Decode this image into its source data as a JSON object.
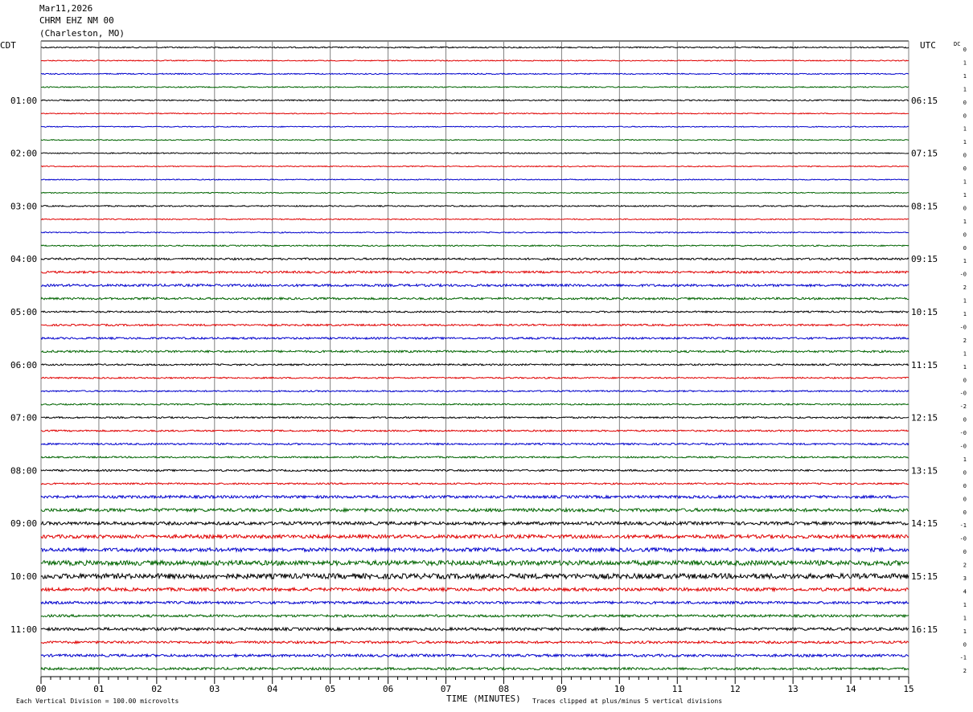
{
  "header": {
    "date": "Mar11,2026",
    "station": "CHRM EHZ NM 00",
    "location": "(Charleston, MO)"
  },
  "left_zone": "CDT",
  "right_zone": "UTC",
  "dc_label": "DC",
  "footer": {
    "x_axis_title": "TIME (MINUTES)",
    "scale_note": "Each Vertical Division =  100.00 microvolts",
    "clip_note": "Traces clipped at plus/minus 5 vertical divisions"
  },
  "colors": {
    "cycle": [
      "#000000",
      "#e00000",
      "#0000cc",
      "#006400"
    ],
    "grid": "#808080"
  },
  "chart_data": {
    "type": "line",
    "title": "CHRM EHZ NM 00 (Charleston, MO)",
    "xlabel": "TIME (MINUTES)",
    "x_ticks": [
      "00",
      "01",
      "02",
      "03",
      "04",
      "05",
      "06",
      "07",
      "08",
      "09",
      "10",
      "11",
      "12",
      "13",
      "14",
      "15"
    ],
    "xlim": [
      0,
      15
    ],
    "left_hour_labels": [
      "01:00",
      "02:00",
      "03:00",
      "04:00",
      "05:00",
      "06:00",
      "07:00",
      "08:00",
      "09:00",
      "10:00",
      "11:00"
    ],
    "right_hour_labels": [
      "06:15",
      "07:15",
      "08:15",
      "09:15",
      "10:15",
      "11:15",
      "12:15",
      "13:15",
      "14:15",
      "15:15",
      "16:15"
    ],
    "dc_offsets": [
      "0",
      "1",
      "1",
      "1",
      "0",
      "0",
      "1",
      "1",
      "0",
      "0",
      "1",
      "1",
      "0",
      "1",
      "0",
      "0",
      "1",
      "-0",
      "2",
      "1",
      "1",
      "-0",
      "2",
      "1",
      "1",
      "0",
      "-0",
      "-2",
      "0",
      "-0",
      "-0",
      "1",
      "0",
      "0",
      "0",
      "0",
      "-1",
      "-0",
      "0",
      "2",
      "3",
      "4",
      "1",
      "1",
      "1",
      "0",
      "-1",
      "2"
    ],
    "trace_amplitude": [
      0.8,
      0.6,
      0.7,
      0.7,
      0.8,
      0.6,
      0.6,
      0.6,
      0.7,
      0.6,
      0.6,
      0.6,
      0.8,
      0.7,
      0.7,
      0.8,
      1.2,
      1.3,
      1.5,
      1.3,
      1.0,
      1.1,
      1.2,
      1.3,
      1.0,
      0.9,
      0.9,
      0.9,
      1.0,
      1.0,
      1.1,
      1.0,
      1.1,
      1.0,
      1.7,
      2.0,
      2.0,
      2.2,
      2.3,
      3.0,
      3.2,
      2.0,
      1.6,
      1.5,
      1.8,
      1.5,
      1.6,
      1.5
    ]
  }
}
